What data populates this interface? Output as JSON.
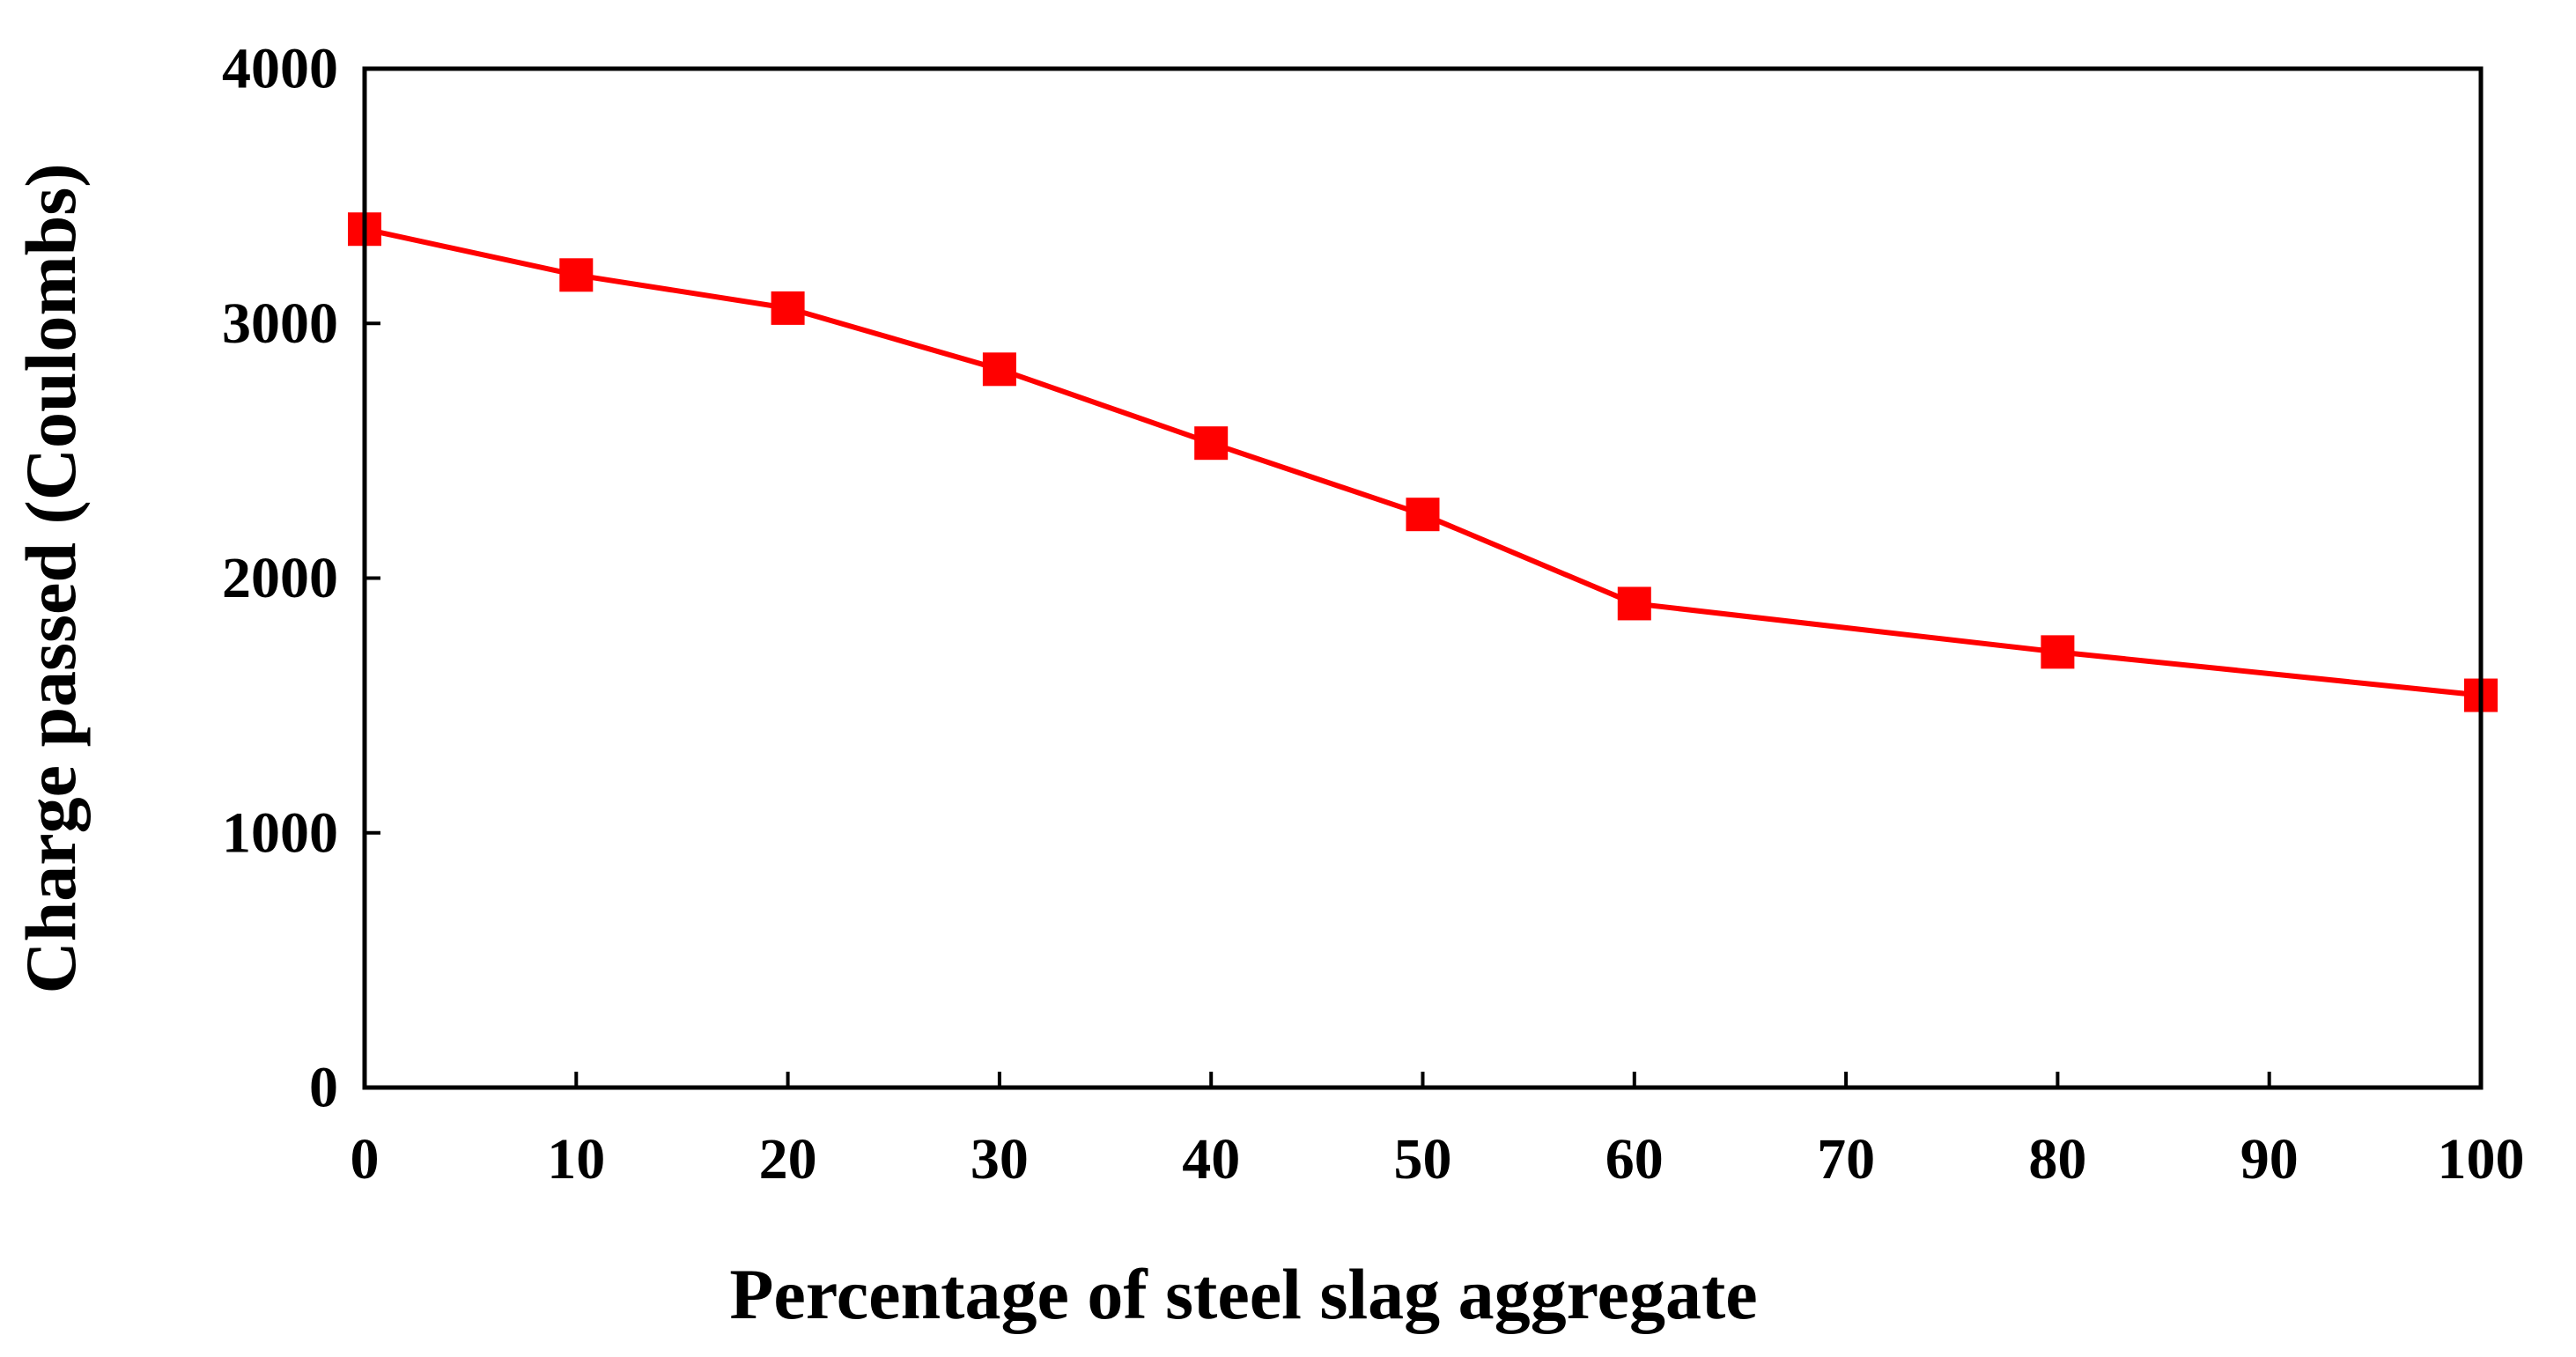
{
  "chart_data": {
    "type": "line",
    "title": "",
    "xlabel": "Percentage of steel slag aggregate",
    "ylabel": "Charge passed (Coulombs)",
    "xlim": [
      0,
      100
    ],
    "ylim": [
      0,
      4000
    ],
    "x_ticks": [
      0,
      10,
      20,
      30,
      40,
      50,
      60,
      70,
      80,
      90,
      100
    ],
    "x_tick_labels": [
      "0",
      "10",
      "20",
      "30",
      "40",
      "50",
      "60",
      "70",
      "80",
      "90",
      "100"
    ],
    "y_ticks": [
      0,
      1000,
      2000,
      3000,
      4000
    ],
    "y_tick_labels": [
      "0",
      "1000",
      "2000",
      "3000",
      "4000"
    ],
    "grid": false,
    "series": [
      {
        "name": "Charge passed",
        "color": "#ff0000",
        "marker": "square",
        "x": [
          0,
          10,
          20,
          30,
          40,
          50,
          60,
          80,
          100
        ],
        "values": [
          3370,
          3190,
          3060,
          2820,
          2530,
          2250,
          1900,
          1710,
          1540
        ]
      }
    ]
  }
}
